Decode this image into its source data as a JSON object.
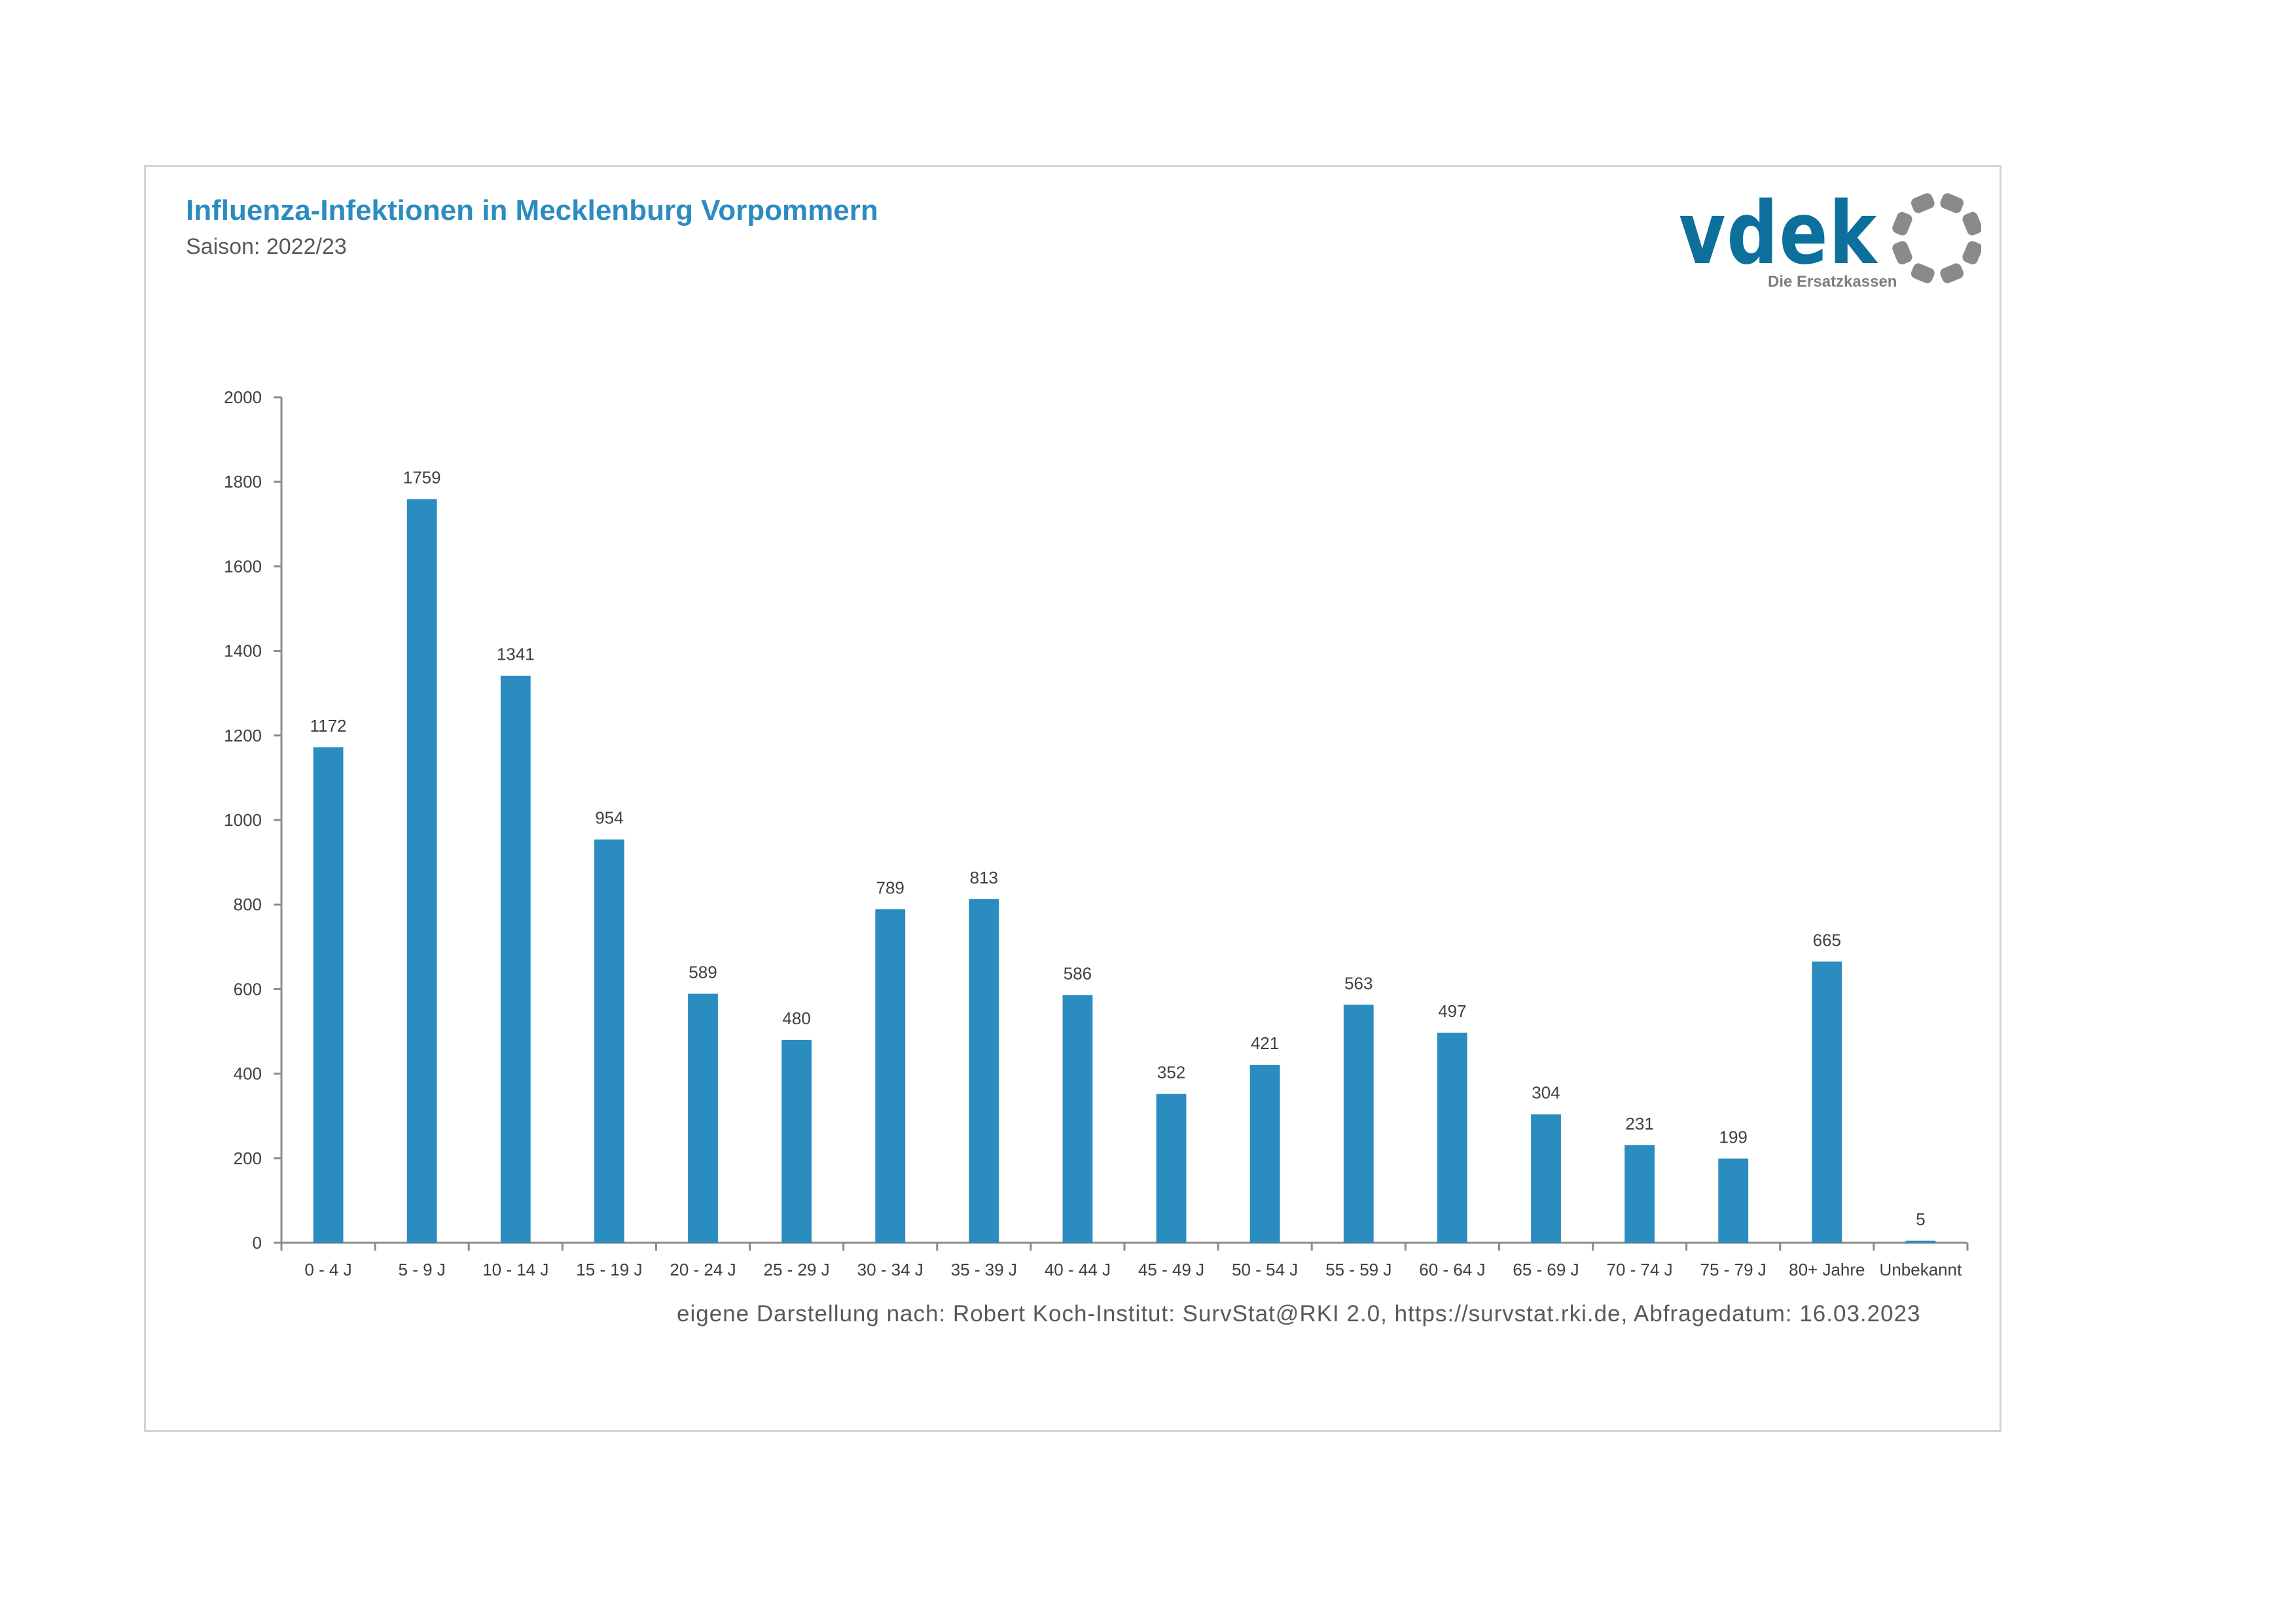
{
  "header": {
    "title": "Influenza-Infektionen in Mecklenburg Vorpommern",
    "subtitle": "Saison: 2022/23"
  },
  "logo": {
    "wordmark": "vdek",
    "tagline": "Die Ersatzkassen",
    "wordmark_color": "#0d6f9c",
    "ring_color": "#8a8a8a"
  },
  "source_note": "eigene Darstellung nach: Robert Koch-Institut: SurvStat@RKI 2.0, https://survstat.rki.de, Abfragedatum: 16.03.2023",
  "chart_data": {
    "type": "bar",
    "title": "Influenza-Infektionen in Mecklenburg Vorpommern",
    "subtitle": "Saison: 2022/23",
    "xlabel": "",
    "ylabel": "",
    "ylim": [
      0,
      2000
    ],
    "yticks": [
      0,
      200,
      400,
      600,
      800,
      1000,
      1200,
      1400,
      1600,
      1800,
      2000
    ],
    "grid": false,
    "legend": "none",
    "bar_color": "#2b8cc0",
    "categories": [
      "0 - 4 J",
      "5 - 9 J",
      "10 - 14 J",
      "15 - 19 J",
      "20 - 24 J",
      "25 - 29 J",
      "30 - 34 J",
      "35 - 39 J",
      "40 - 44 J",
      "45 - 49 J",
      "50 - 54 J",
      "55 - 59 J",
      "60 - 64 J",
      "65 - 69 J",
      "70 - 74 J",
      "75 - 79 J",
      "80+ Jahre",
      "Unbekannt"
    ],
    "values": [
      1172,
      1759,
      1341,
      954,
      589,
      480,
      789,
      813,
      586,
      352,
      421,
      563,
      497,
      304,
      231,
      199,
      665,
      5
    ]
  }
}
